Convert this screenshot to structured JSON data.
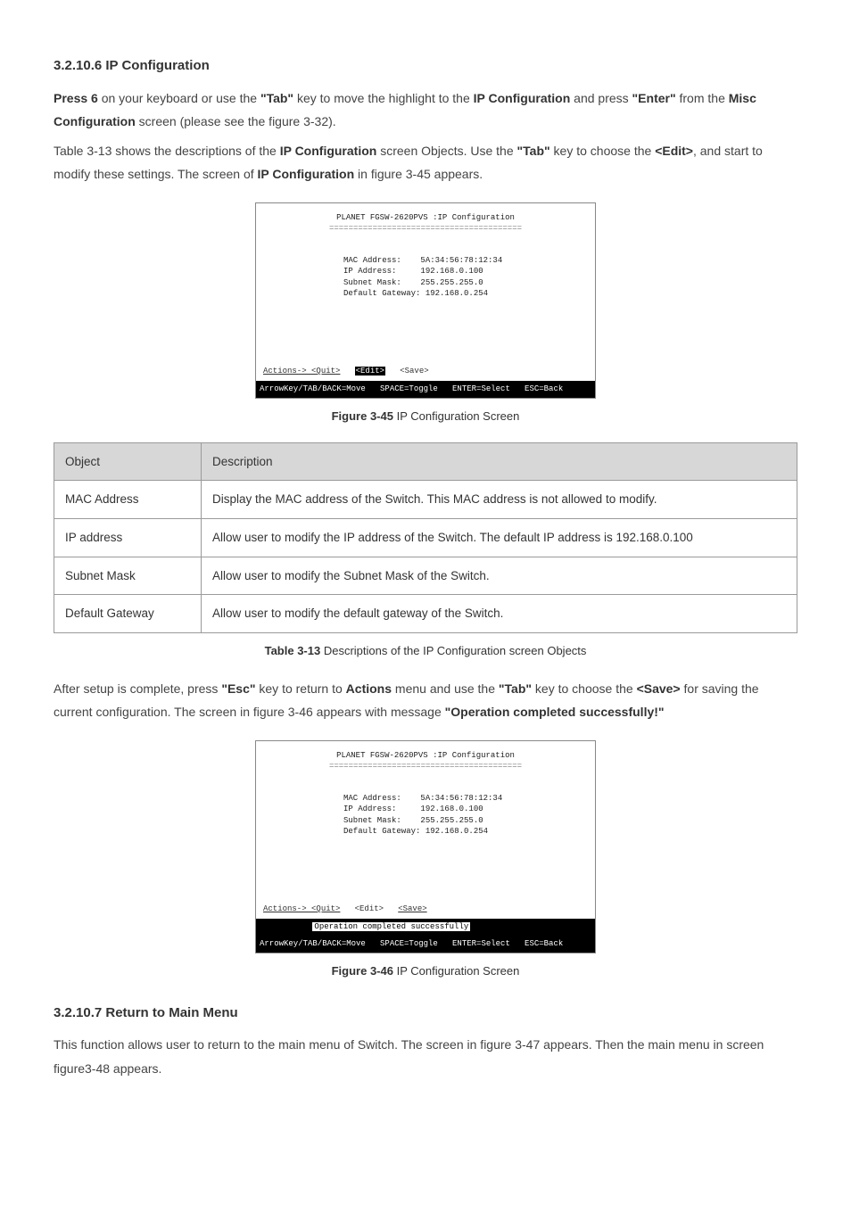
{
  "section1": {
    "heading": "3.2.10.6 IP Configuration",
    "p1_a": "Press 6",
    "p1_b": " on your keyboard or use the ",
    "p1_c": "\"Tab\"",
    "p1_d": " key to move the highlight to the ",
    "p1_e": "IP Configuration",
    "p1_f": " and press ",
    "p1_g": "\"Enter\"",
    "p1_h": " from the ",
    "p1_i": "Misc Configuration",
    "p1_j": " screen (please see the figure 3-32).",
    "p2_a": "Table 3-13 shows the descriptions of the ",
    "p2_b": "IP Configuration",
    "p2_c": " screen Objects. Use the ",
    "p2_d": "\"Tab\"",
    "p2_e": " key to choose the ",
    "p2_f": "<Edit>",
    "p2_g": ", and start to modify these settings. The screen of ",
    "p2_h": "IP Configuration",
    "p2_i": " in figure 3-45 appears."
  },
  "terminal": {
    "title": "PLANET FGSW-2620PVS :IP Configuration",
    "underline": "========================================",
    "rows": [
      {
        "k": "MAC Address:    ",
        "v": "5A:34:56:78:12:34"
      },
      {
        "k": "IP Address:     ",
        "v": "192.168.0.100"
      },
      {
        "k": "Subnet Mask:    ",
        "v": "255.255.255.0"
      },
      {
        "k": "Default Gateway:",
        "v": " 192.168.0.254"
      }
    ],
    "actions_prefix": "Actions-> ",
    "quit": "<Quit>",
    "edit": "<Edit>",
    "save": "<Save>",
    "opmsg": "Operation completed successfully",
    "status": "ArrowKey/TAB/BACK=Move   SPACE=Toggle   ENTER=Select   ESC=Back"
  },
  "fig45_caption_b": "Figure 3-45",
  "fig45_caption_t": " IP Configuration Screen",
  "table": {
    "h1": "Object",
    "h2": "Description",
    "rows": [
      {
        "o": "MAC Address",
        "d": "Display the MAC address of the Switch. This MAC address is not allowed to modify."
      },
      {
        "o": "IP address",
        "d": "Allow user to modify the IP address of the Switch. The default IP address is 192.168.0.100"
      },
      {
        "o": "Subnet Mask",
        "d": "Allow user to modify the Subnet Mask of the Switch."
      },
      {
        "o": "Default Gateway",
        "d": "Allow user to modify the default gateway of the Switch."
      }
    ]
  },
  "table_caption_b": "Table 3-13",
  "table_caption_t": " Descriptions of the IP Configuration screen Objects",
  "after": {
    "a": "After setup is complete, press ",
    "b": "\"Esc\"",
    "c": " key to return to ",
    "d": "Actions",
    "e": " menu and use the ",
    "f": "\"Tab\"",
    "g": " key to choose the ",
    "h": "<Save>",
    "i": " for saving the current configuration. The screen in figure 3-46 appears with message ",
    "j": "\"Operation completed successfully!\""
  },
  "fig46_caption_b": "Figure 3-46",
  "fig46_caption_t": " IP Configuration Screen",
  "section2": {
    "heading": "3.2.10.7 Return to Main Menu",
    "p": "This function allows user to return to the main menu of Switch. The screen in figure 3-47 appears. Then the main menu in screen figure3-48 appears."
  }
}
